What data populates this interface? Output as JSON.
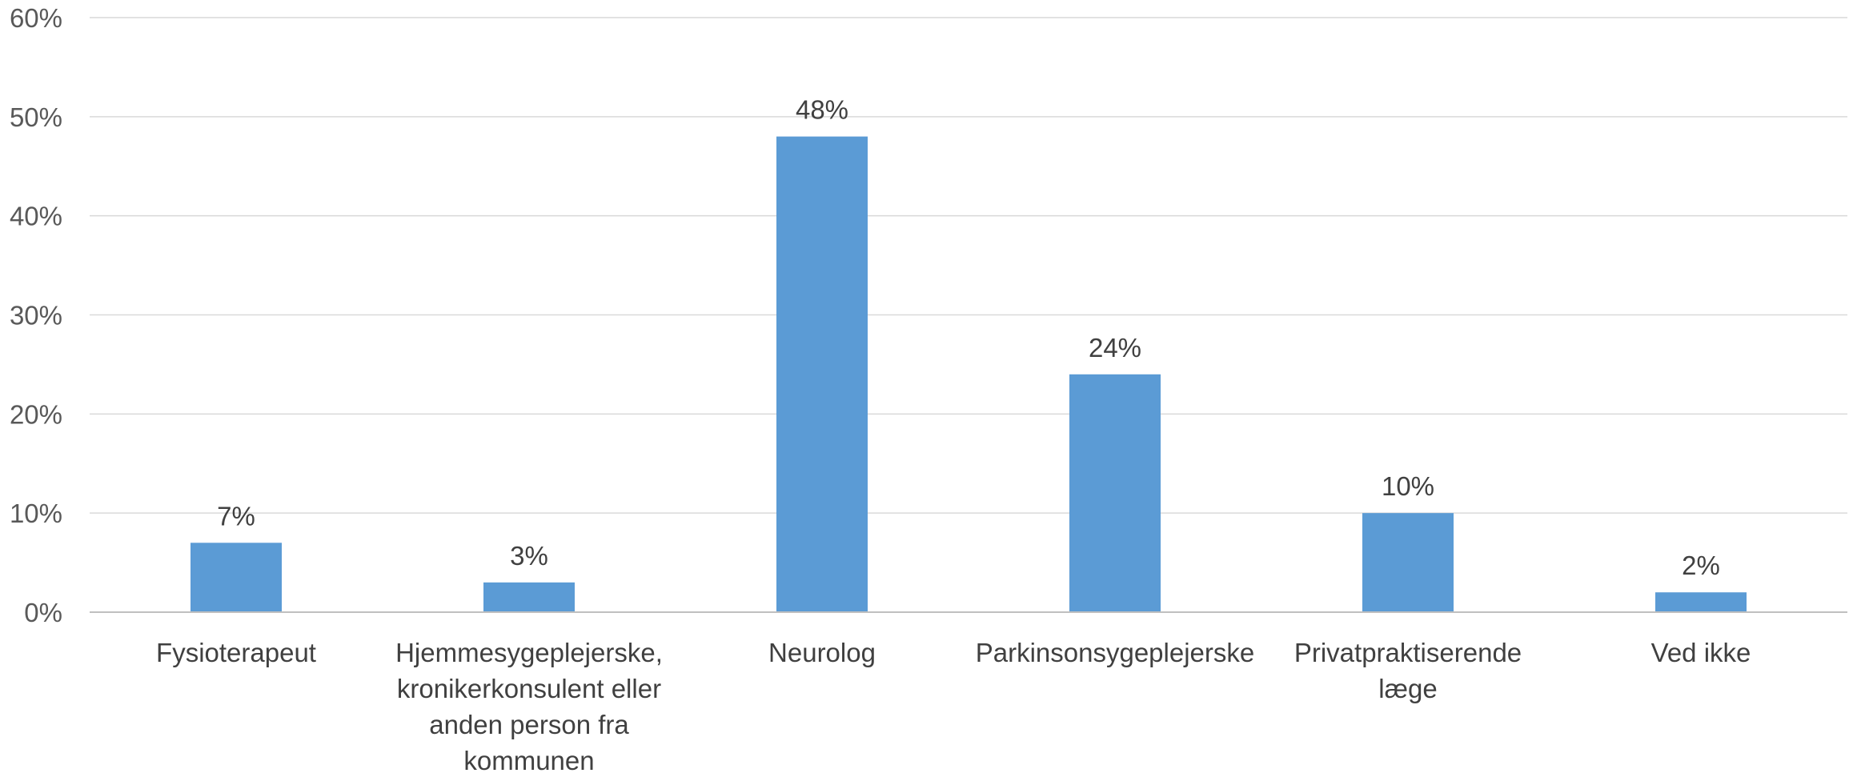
{
  "chart_data": {
    "type": "bar",
    "title": "",
    "xlabel": "",
    "ylabel": "",
    "categories": [
      [
        "Fysioterapeut"
      ],
      [
        "Hjemmesygeplejerske,",
        "kronikerkonsulent eller",
        "anden person fra",
        "kommunen"
      ],
      [
        "Neurolog"
      ],
      [
        "Parkinsonsygeplejerske"
      ],
      [
        "Privatpraktiserende",
        "læge"
      ],
      [
        "Ved ikke"
      ]
    ],
    "values": [
      7,
      3,
      48,
      24,
      10,
      2
    ],
    "data_labels": [
      "7%",
      "3%",
      "48%",
      "24%",
      "10%",
      "2%"
    ],
    "ylim": [
      0,
      60
    ],
    "yticks": [
      0,
      10,
      20,
      30,
      40,
      50,
      60
    ],
    "ytick_labels": [
      "0%",
      "10%",
      "20%",
      "30%",
      "40%",
      "50%",
      "60%"
    ],
    "grid": true,
    "legend": "none",
    "bar_color": "#5b9bd5"
  }
}
